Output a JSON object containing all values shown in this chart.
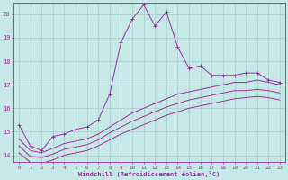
{
  "xlabel": "Windchill (Refroidissement éolien,°C)",
  "bg_color": "#c8e8e8",
  "line_color": "#993399",
  "grid_color": "#aacccc",
  "xlim": [
    -0.5,
    23.5
  ],
  "ylim": [
    13.7,
    20.5
  ],
  "yticks": [
    14,
    15,
    16,
    17,
    18,
    19,
    20
  ],
  "xticks": [
    0,
    1,
    2,
    3,
    4,
    5,
    6,
    7,
    8,
    9,
    10,
    11,
    12,
    13,
    14,
    15,
    16,
    17,
    18,
    19,
    20,
    21,
    22,
    23
  ],
  "main_x": [
    0,
    1,
    2,
    3,
    4,
    5,
    6,
    7,
    8,
    9,
    10,
    11,
    12,
    13,
    14,
    15,
    16,
    17,
    18,
    19,
    20,
    21,
    22,
    23
  ],
  "main_y": [
    15.3,
    14.4,
    14.2,
    14.8,
    14.9,
    15.1,
    15.2,
    15.5,
    16.6,
    18.8,
    19.8,
    20.4,
    19.5,
    20.1,
    18.6,
    17.7,
    17.8,
    17.4,
    17.4,
    17.4,
    17.5,
    17.5,
    17.2,
    17.1
  ],
  "curve2_x": [
    0,
    1,
    2,
    3,
    4,
    5,
    6,
    7,
    8,
    9,
    10,
    11,
    12,
    13,
    14,
    15,
    16,
    17,
    18,
    19,
    20,
    21,
    22,
    23
  ],
  "curve2_y": [
    14.7,
    14.2,
    14.1,
    14.3,
    14.5,
    14.6,
    14.7,
    14.9,
    15.2,
    15.5,
    15.8,
    16.0,
    16.2,
    16.4,
    16.6,
    16.7,
    16.8,
    16.9,
    17.0,
    17.1,
    17.1,
    17.2,
    17.1,
    17.0
  ],
  "curve3_x": [
    0,
    1,
    2,
    3,
    4,
    5,
    6,
    7,
    8,
    9,
    10,
    11,
    12,
    13,
    14,
    15,
    16,
    17,
    18,
    19,
    20,
    21,
    22,
    23
  ],
  "curve3_y": [
    14.4,
    13.95,
    13.9,
    14.05,
    14.25,
    14.35,
    14.45,
    14.65,
    14.95,
    15.2,
    15.45,
    15.65,
    15.85,
    16.05,
    16.2,
    16.35,
    16.45,
    16.55,
    16.65,
    16.75,
    16.75,
    16.8,
    16.75,
    16.65
  ],
  "curve4_x": [
    0,
    1,
    2,
    3,
    4,
    5,
    6,
    7,
    8,
    9,
    10,
    11,
    12,
    13,
    14,
    15,
    16,
    17,
    18,
    19,
    20,
    21,
    22,
    23
  ],
  "curve4_y": [
    14.1,
    13.7,
    13.65,
    13.8,
    14.0,
    14.1,
    14.2,
    14.4,
    14.65,
    14.9,
    15.1,
    15.3,
    15.5,
    15.7,
    15.85,
    16.0,
    16.1,
    16.2,
    16.3,
    16.4,
    16.45,
    16.5,
    16.45,
    16.35
  ]
}
